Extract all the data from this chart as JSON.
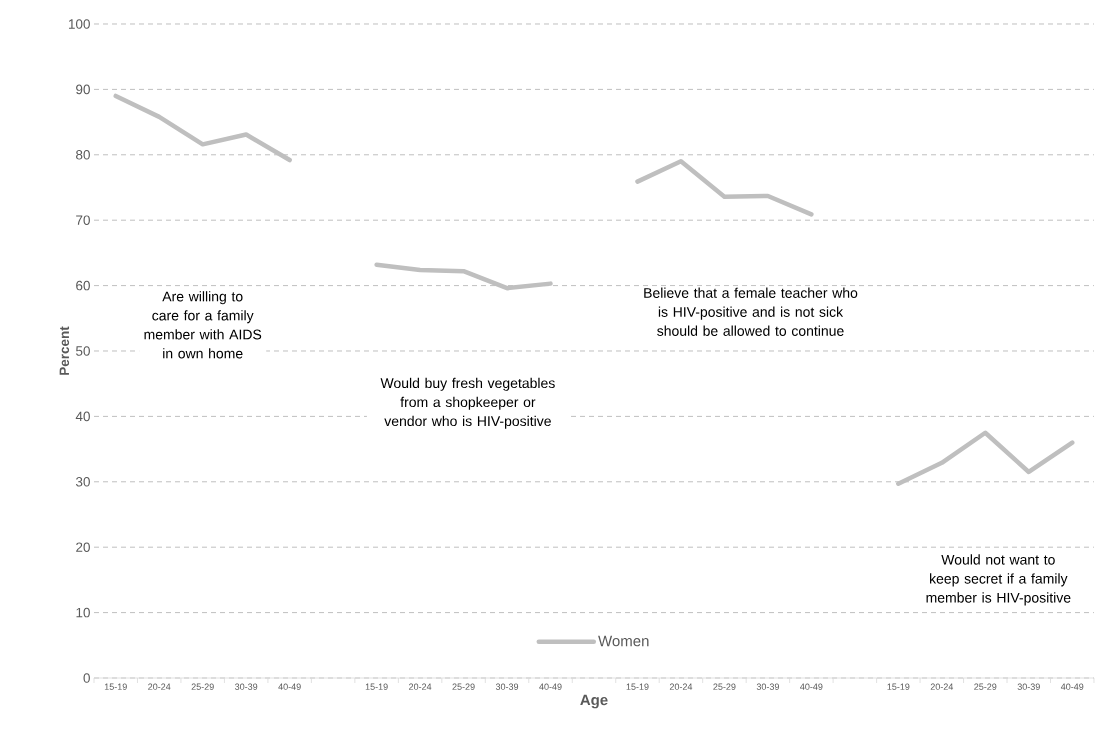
{
  "chart_data": {
    "type": "line",
    "xlabel": "Age",
    "ylabel": "Percent",
    "categories": [
      "15-19",
      "20-24",
      "25-29",
      "30-39",
      "40-49",
      null,
      "15-19",
      "20-24",
      "25-29",
      "30-39",
      "40-49",
      null,
      "15-19",
      "20-24",
      "25-29",
      "30-39",
      "40-49",
      null,
      "15-19",
      "20-24",
      "25-29",
      "30-39",
      "40-49"
    ],
    "series": [
      {
        "name": "Women",
        "color": "#bfbfbf",
        "values": [
          89.0,
          85.8,
          81.6,
          83.1,
          79.2,
          null,
          63.2,
          62.4,
          62.2,
          59.6,
          60.3,
          null,
          75.9,
          79.0,
          73.6,
          73.7,
          70.9,
          null,
          29.7,
          32.9,
          37.5,
          31.5,
          36.0
        ]
      }
    ],
    "ylim": [
      0,
      100
    ],
    "yticks": [
      0,
      10,
      20,
      30,
      40,
      50,
      60,
      70,
      80,
      90,
      100
    ],
    "grid": "y",
    "legend": "bottom",
    "annotations": [
      "Are willing to care for a family member with AIDS in own home",
      "Would buy fresh vegetables from a shopkeeper or vendor who is HIV-positive",
      "Believe that a female teacher who is HIV-positive and is not sick should be allowed to continue",
      "Would not want to keep secret if a family member is HIV-positive"
    ]
  }
}
